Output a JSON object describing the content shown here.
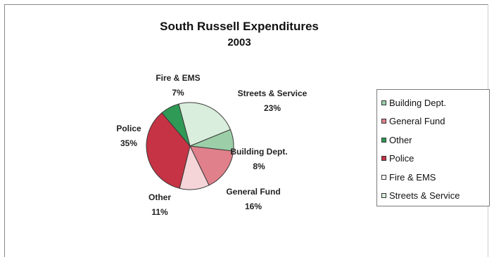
{
  "chart_data": {
    "type": "pie",
    "title": "South Russell Expenditures",
    "subtitle": "2003",
    "slices": [
      {
        "label": "Streets & Service",
        "value": 23,
        "pct_label": "23%",
        "color": "#d9eedc"
      },
      {
        "label": "Building Dept.",
        "value": 8,
        "pct_label": "8%",
        "color": "#9ccfa8"
      },
      {
        "label": "General Fund",
        "value": 16,
        "pct_label": "16%",
        "color": "#e0808a"
      },
      {
        "label": "Other",
        "value": 11,
        "pct_label": "11%",
        "color": "#f5d5d8"
      },
      {
        "label": "Police",
        "value": 35,
        "pct_label": "35%",
        "color": "#c63344"
      },
      {
        "label": "Fire & EMS",
        "value": 7,
        "pct_label": "7%",
        "color": "#2f9a55"
      }
    ],
    "legend": {
      "placement": "right",
      "items": [
        {
          "label": "Building Dept.",
          "color": "#9ccfa8"
        },
        {
          "label": "General Fund",
          "color": "#e0808a"
        },
        {
          "label": "Other",
          "color": "#2f9a55"
        },
        {
          "label": "Police",
          "color": "#c63344"
        },
        {
          "label": "Fire & EMS",
          "color": "#ffffff"
        },
        {
          "label": "Streets & Service",
          "color": "#d9eedc"
        }
      ]
    }
  }
}
